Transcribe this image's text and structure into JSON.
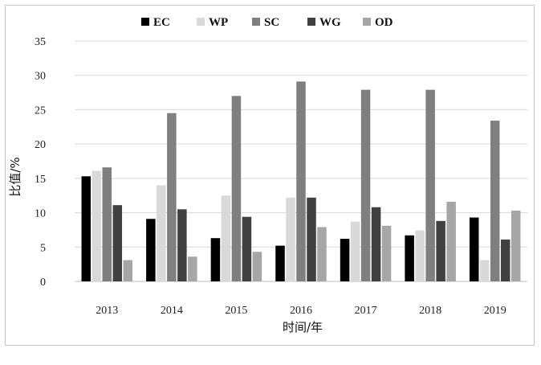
{
  "chart_data": {
    "type": "bar",
    "categories": [
      "2013",
      "2014",
      "2015",
      "2016",
      "2017",
      "2018",
      "2019"
    ],
    "series": [
      {
        "name": "EC",
        "color": "#000000",
        "values": [
          15.3,
          9.1,
          6.3,
          5.2,
          6.2,
          6.7,
          9.3
        ]
      },
      {
        "name": "WP",
        "color": "#d9d9d9",
        "values": [
          16.1,
          14.0,
          12.5,
          12.2,
          8.7,
          7.4,
          3.1
        ]
      },
      {
        "name": "SC",
        "color": "#7f7f7f",
        "values": [
          16.6,
          24.5,
          27.0,
          29.1,
          27.9,
          27.9,
          23.4
        ]
      },
      {
        "name": "WG",
        "color": "#404040",
        "values": [
          11.1,
          10.5,
          9.4,
          12.2,
          10.8,
          8.8,
          6.1
        ]
      },
      {
        "name": "OD",
        "color": "#a6a6a6",
        "values": [
          3.1,
          3.6,
          4.3,
          7.9,
          8.1,
          11.6,
          10.3
        ]
      }
    ],
    "xlabel": "时间/年",
    "ylabel": "比值/%",
    "ylim": [
      0,
      35
    ],
    "yticks": [
      "0",
      "5",
      "10",
      "15",
      "20",
      "25",
      "30",
      "35"
    ],
    "grid": true,
    "legend_position": "top-center"
  }
}
